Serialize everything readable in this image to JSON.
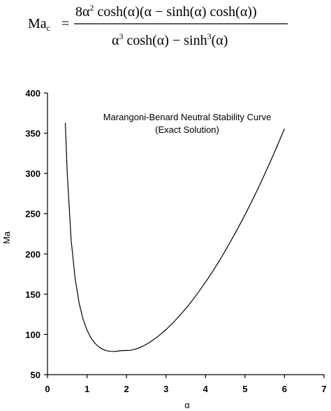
{
  "formula": {
    "lhs": "Ma",
    "lhs_sub": "c",
    "equals": "=",
    "numerator": {
      "a": "8α",
      "a_sup": "2",
      "b": " cosh(α)(α − sinh(α) cosh(α))"
    },
    "denominator": {
      "a": "α",
      "a_sup": "3",
      "b": " cosh(α) − sinh",
      "b_sup": "3",
      "c": "(α)"
    }
  },
  "chart_data": {
    "type": "line",
    "title": "Marangoni-Benard Neutral Stability Curve",
    "subtitle": "(Exact Solution)",
    "xlabel": "α",
    "ylabel": "Ma",
    "xlim": [
      0,
      7
    ],
    "ylim": [
      50,
      400
    ],
    "xticks": [
      "0",
      "1",
      "2",
      "3",
      "4",
      "5",
      "6",
      "7"
    ],
    "yticks": [
      "50",
      "100",
      "150",
      "200",
      "250",
      "300",
      "350",
      "400"
    ],
    "grid": false,
    "series": [
      {
        "x": [
          0.45,
          0.5,
          0.6,
          0.7,
          0.8,
          0.9,
          1.0,
          1.1,
          1.2,
          1.3,
          1.4,
          1.5,
          1.6,
          1.7,
          1.8,
          1.9,
          1.99,
          2.1,
          2.2,
          2.3,
          2.4,
          2.5,
          2.6,
          2.8,
          3.0,
          3.2,
          3.4,
          3.6,
          3.8,
          4.0,
          4.2,
          4.4,
          4.6,
          4.8,
          5.0,
          5.2,
          5.4,
          5.6,
          5.8,
          6.0
        ],
        "y": [
          363.0,
          299.6,
          217.2,
          169.2,
          139.0,
          119.0,
          105.3,
          95.8,
          89.1,
          84.5,
          81.4,
          79.7,
          78.9,
          78.8,
          79.4,
          80.0,
          80.0,
          80.2,
          81.4,
          83.0,
          85.1,
          87.7,
          90.6,
          97.6,
          106.0,
          115.6,
          126.3,
          138.1,
          151.0,
          164.9,
          179.7,
          195.5,
          212.3,
          230.0,
          248.6,
          268.2,
          288.7,
          310.1,
          332.4,
          355.6
        ]
      }
    ]
  }
}
